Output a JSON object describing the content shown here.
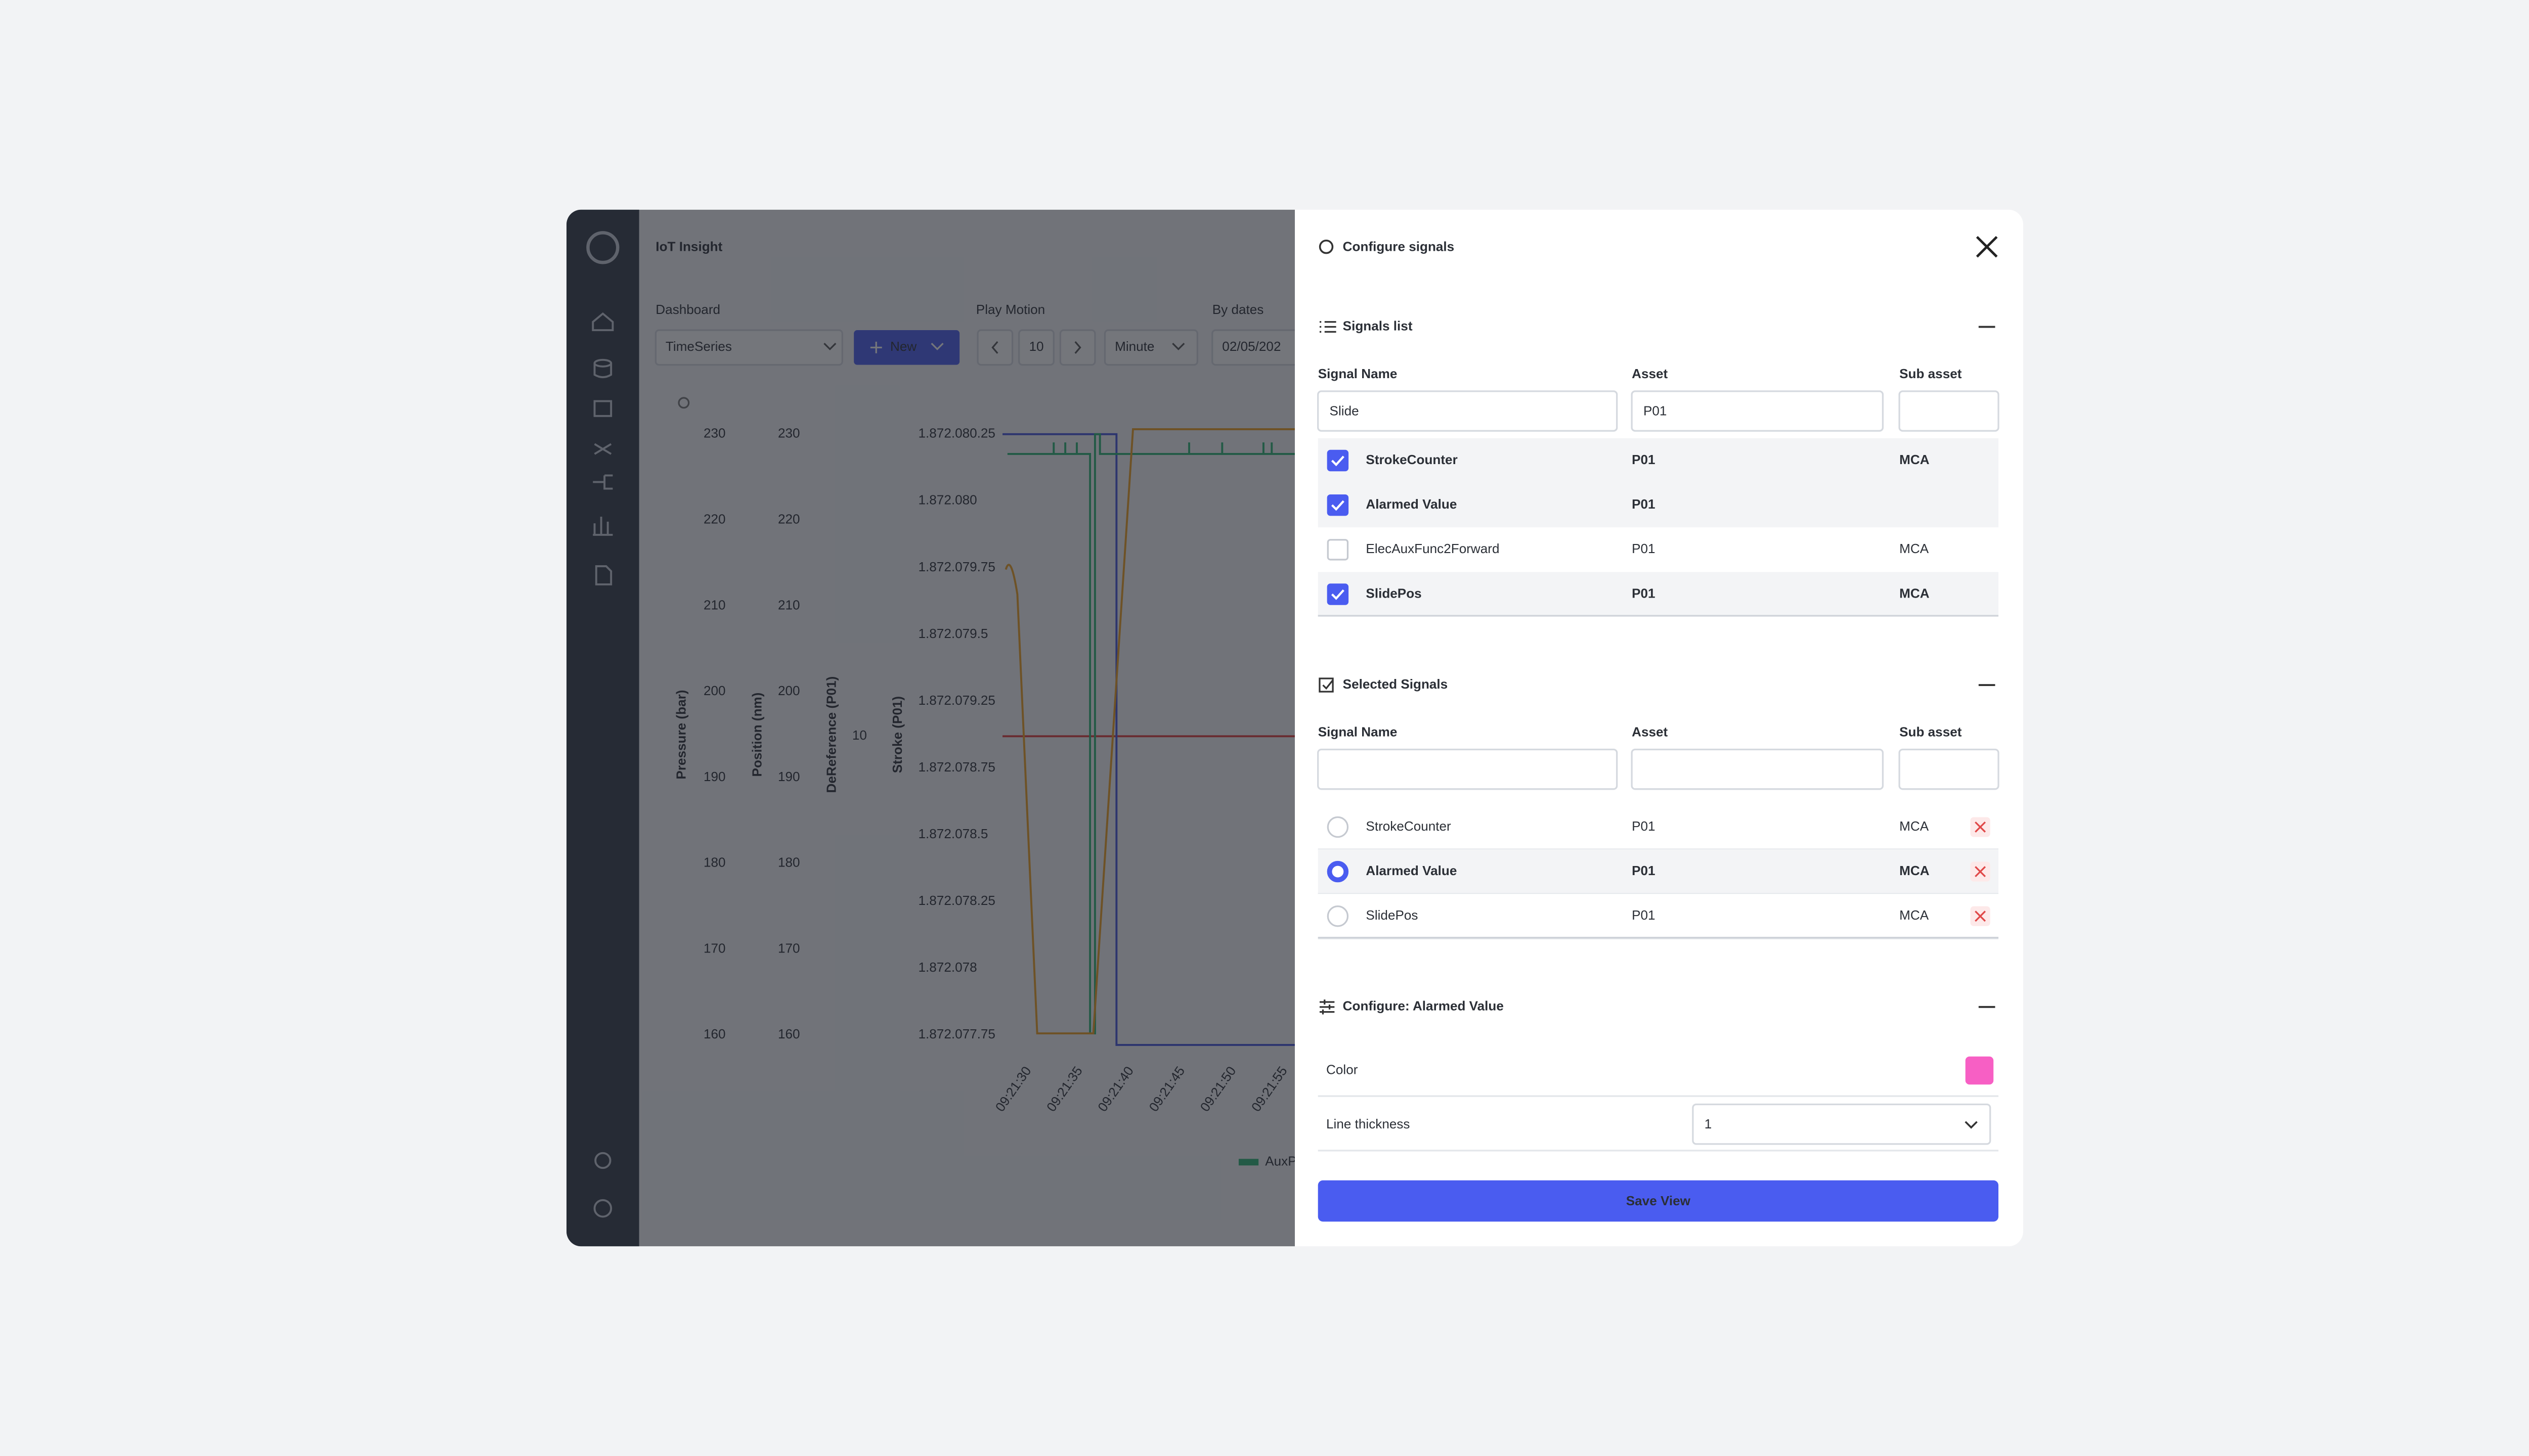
{
  "app": {
    "title": "IoT Insight",
    "toolbar": {
      "dashboard_label": "Dashboard",
      "dashboard_value": "TimeSeries",
      "new_button": "New",
      "play_motion_label": "Play Motion",
      "play_motion_value": "10",
      "unit_value": "Minute",
      "by_dates_label": "By dates",
      "date_value": "02/05/202"
    },
    "chart": {
      "y_axes": [
        {
          "title": "Pressure (bar)",
          "ticks": [
            230,
            220,
            210,
            200,
            190,
            180,
            170,
            160
          ]
        },
        {
          "title": "Position (nm)",
          "ticks": [
            230,
            220,
            210,
            200,
            190,
            180,
            170,
            160
          ]
        },
        {
          "title": "DeReference (P01)",
          "ticks": [
            "10"
          ]
        },
        {
          "title": "Stroke (P01)",
          "ticks": [
            "1.872.080.25",
            "1.872.080",
            "1.872.079.75",
            "1.872.079.5",
            "1.872.079.25",
            "1.872.078.75",
            "1.872.078.5",
            "1.872.078.25",
            "1.872.078",
            "1.872.077.75"
          ]
        }
      ],
      "x_ticks": [
        "09:21:30",
        "09:21:35",
        "09:21:40",
        "09:21:45",
        "09:21:50",
        "09:21:55"
      ],
      "legend": "AuxP"
    }
  },
  "modal": {
    "title": "Configure signals",
    "signals_list": {
      "title": "Signals list",
      "columns": [
        "Signal Name",
        "Asset",
        "Sub asset"
      ],
      "filters": {
        "signal_name": "Slide",
        "asset": "P01"
      },
      "rows": [
        {
          "name": "StrokeCounter",
          "asset": "P01",
          "sub_asset": "MCA",
          "checked": true
        },
        {
          "name": "Alarmed Value",
          "asset": "P01",
          "checked": true
        },
        {
          "name": "ElecAuxFunc2Forward",
          "asset": "P01",
          "sub_asset": "MCA",
          "checked": false
        },
        {
          "name": "SlidePos",
          "asset": "P01",
          "sub_asset": "MCA",
          "checked": true
        }
      ]
    },
    "selected_signals": {
      "title": "Selected Signals",
      "columns": [
        "Signal Name",
        "Asset",
        "Sub asset"
      ],
      "rows": [
        {
          "name": "StrokeCounter",
          "asset": "P01",
          "sub_asset": "MCA",
          "active": false
        },
        {
          "name": "Alarmed Value",
          "asset": "P01",
          "sub_asset": "MCA",
          "active": true
        },
        {
          "name": "SlidePos",
          "asset": "P01",
          "sub_asset": "MCA",
          "active": false
        }
      ]
    },
    "configure": {
      "title": "Configure: Alarmed Value",
      "color_label": "Color",
      "color": "#f75fc4",
      "thickness_label": "Line thickness",
      "thickness_value": "1"
    },
    "save_button": "Save View"
  }
}
